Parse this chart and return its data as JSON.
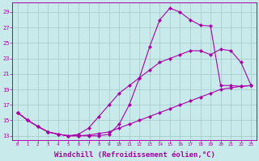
{
  "background_color": "#c8eaea",
  "grid_color": "#a0c8c8",
  "line_color": "#aa00aa",
  "marker": "D",
  "marker_size": 2.2,
  "xlabel": "Windchill (Refroidissement éolien,°C)",
  "xlabel_fontsize": 6.5,
  "ylabel_ticks": [
    13,
    15,
    17,
    19,
    21,
    23,
    25,
    27,
    29
  ],
  "xtick_labels": [
    "0",
    "1",
    "2",
    "3",
    "4",
    "5",
    "6",
    "7",
    "8",
    "9",
    "10",
    "11",
    "12",
    "13",
    "14",
    "15",
    "16",
    "17",
    "18",
    "19",
    "20",
    "21",
    "22",
    "23"
  ],
  "xlim": [
    -0.5,
    23.5
  ],
  "ylim": [
    12.5,
    30.2
  ],
  "line1_x": [
    0,
    1,
    2,
    3,
    4,
    5,
    6,
    7,
    8,
    9,
    10,
    11,
    12,
    13,
    14,
    15,
    16,
    17,
    18,
    19,
    20,
    21,
    22,
    23
  ],
  "line1_y": [
    16.0,
    15.0,
    14.2,
    13.5,
    13.2,
    13.0,
    13.0,
    13.1,
    13.3,
    13.5,
    14.0,
    14.5,
    15.0,
    15.5,
    16.0,
    16.5,
    17.0,
    17.5,
    18.0,
    18.5,
    19.0,
    19.2,
    19.4,
    19.5
  ],
  "line2_x": [
    0,
    1,
    2,
    3,
    4,
    5,
    6,
    7,
    8,
    9,
    10,
    11,
    12,
    13,
    14,
    15,
    16,
    17,
    18,
    19,
    20,
    21,
    22,
    23
  ],
  "line2_y": [
    16.0,
    15.0,
    14.2,
    13.5,
    13.2,
    13.0,
    13.2,
    14.0,
    15.5,
    17.0,
    18.5,
    19.5,
    20.5,
    21.5,
    22.5,
    23.0,
    23.5,
    24.0,
    24.0,
    23.5,
    24.2,
    24.0,
    22.5,
    19.5
  ],
  "line3_x": [
    0,
    1,
    2,
    3,
    4,
    5,
    6,
    7,
    8,
    9,
    10,
    11,
    12,
    13,
    14,
    15,
    16,
    17,
    18,
    19,
    20,
    21,
    22,
    23
  ],
  "line3_y": [
    16.0,
    15.0,
    14.2,
    13.5,
    13.2,
    13.0,
    13.0,
    13.0,
    13.0,
    13.2,
    14.5,
    17.0,
    20.5,
    24.5,
    28.0,
    29.5,
    29.0,
    28.0,
    27.3,
    27.2,
    19.5,
    19.5,
    19.4,
    19.5
  ]
}
